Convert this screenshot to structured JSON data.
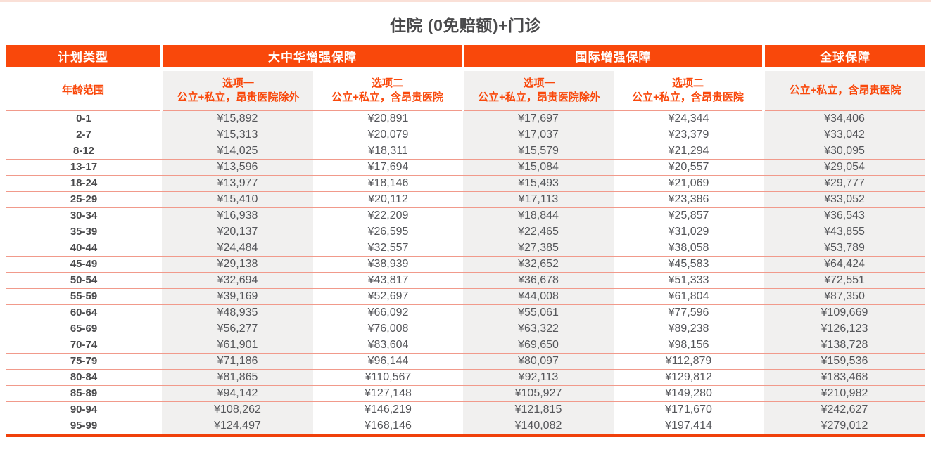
{
  "title": "住院 (0免赔额)+门诊",
  "colors": {
    "accent_orange": "#F9480B",
    "row_line_salmon": "#F19A8B",
    "column_shade_gray": "#F1F0EF",
    "title_text": "#4A4A4C",
    "value_text": "#55565A",
    "header_text": "#FFFFFF"
  },
  "header": {
    "plan_type": "计划类型",
    "greater_china": "大中华增强保障",
    "international": "国际增强保障",
    "global": "全球保障"
  },
  "subheader": {
    "age_range": "年龄范围",
    "gc_option1": {
      "line1": "选项一",
      "line2": "公立+私立，昂贵医院除外"
    },
    "gc_option2": {
      "line1": "选项二",
      "line2": "公立+私立，含昂贵医院"
    },
    "intl_option1": {
      "line1": "选项一",
      "line2": "公立+私立，昂贵医院除外"
    },
    "intl_option2": {
      "line1": "选项二",
      "line2": "公立+私立，含昂贵医院"
    },
    "global_desc": "公立+私立，含昂贵医院"
  },
  "rows": [
    {
      "age": "0-1",
      "values": [
        "¥15,892",
        "¥20,891",
        "¥17,697",
        "¥24,344",
        "¥34,406"
      ]
    },
    {
      "age": "2-7",
      "values": [
        "¥15,313",
        "¥20,079",
        "¥17,037",
        "¥23,379",
        "¥33,042"
      ]
    },
    {
      "age": "8-12",
      "values": [
        "¥14,025",
        "¥18,311",
        "¥15,579",
        "¥21,294",
        "¥30,095"
      ]
    },
    {
      "age": "13-17",
      "values": [
        "¥13,596",
        "¥17,694",
        "¥15,084",
        "¥20,557",
        "¥29,054"
      ]
    },
    {
      "age": "18-24",
      "values": [
        "¥13,977",
        "¥18,146",
        "¥15,493",
        "¥21,069",
        "¥29,777"
      ]
    },
    {
      "age": "25-29",
      "values": [
        "¥15,410",
        "¥20,112",
        "¥17,113",
        "¥23,386",
        "¥33,052"
      ]
    },
    {
      "age": "30-34",
      "values": [
        "¥16,938",
        "¥22,209",
        "¥18,844",
        "¥25,857",
        "¥36,543"
      ]
    },
    {
      "age": "35-39",
      "values": [
        "¥20,137",
        "¥26,595",
        "¥22,465",
        "¥31,029",
        "¥43,855"
      ]
    },
    {
      "age": "40-44",
      "values": [
        "¥24,484",
        "¥32,557",
        "¥27,385",
        "¥38,058",
        "¥53,789"
      ]
    },
    {
      "age": "45-49",
      "values": [
        "¥29,138",
        "¥38,939",
        "¥32,652",
        "¥45,583",
        "¥64,424"
      ]
    },
    {
      "age": "50-54",
      "values": [
        "¥32,694",
        "¥43,817",
        "¥36,678",
        "¥51,333",
        "¥72,551"
      ]
    },
    {
      "age": "55-59",
      "values": [
        "¥39,169",
        "¥52,697",
        "¥44,008",
        "¥61,804",
        "¥87,350"
      ]
    },
    {
      "age": "60-64",
      "values": [
        "¥48,935",
        "¥66,092",
        "¥55,061",
        "¥77,596",
        "¥109,669"
      ]
    },
    {
      "age": "65-69",
      "values": [
        "¥56,277",
        "¥76,008",
        "¥63,322",
        "¥89,238",
        "¥126,123"
      ]
    },
    {
      "age": "70-74",
      "values": [
        "¥61,901",
        "¥83,604",
        "¥69,650",
        "¥98,156",
        "¥138,728"
      ]
    },
    {
      "age": "75-79",
      "values": [
        "¥71,186",
        "¥96,144",
        "¥80,097",
        "¥112,879",
        "¥159,536"
      ]
    },
    {
      "age": "80-84",
      "values": [
        "¥81,865",
        "¥110,567",
        "¥92,113",
        "¥129,812",
        "¥183,468"
      ]
    },
    {
      "age": "85-89",
      "values": [
        "¥94,142",
        "¥127,148",
        "¥105,927",
        "¥149,280",
        "¥210,982"
      ]
    },
    {
      "age": "90-94",
      "values": [
        "¥108,262",
        "¥146,219",
        "¥121,815",
        "¥171,670",
        "¥242,627"
      ]
    },
    {
      "age": "95-99",
      "values": [
        "¥124,497",
        "¥168,146",
        "¥140,082",
        "¥197,414",
        "¥279,012"
      ]
    }
  ]
}
